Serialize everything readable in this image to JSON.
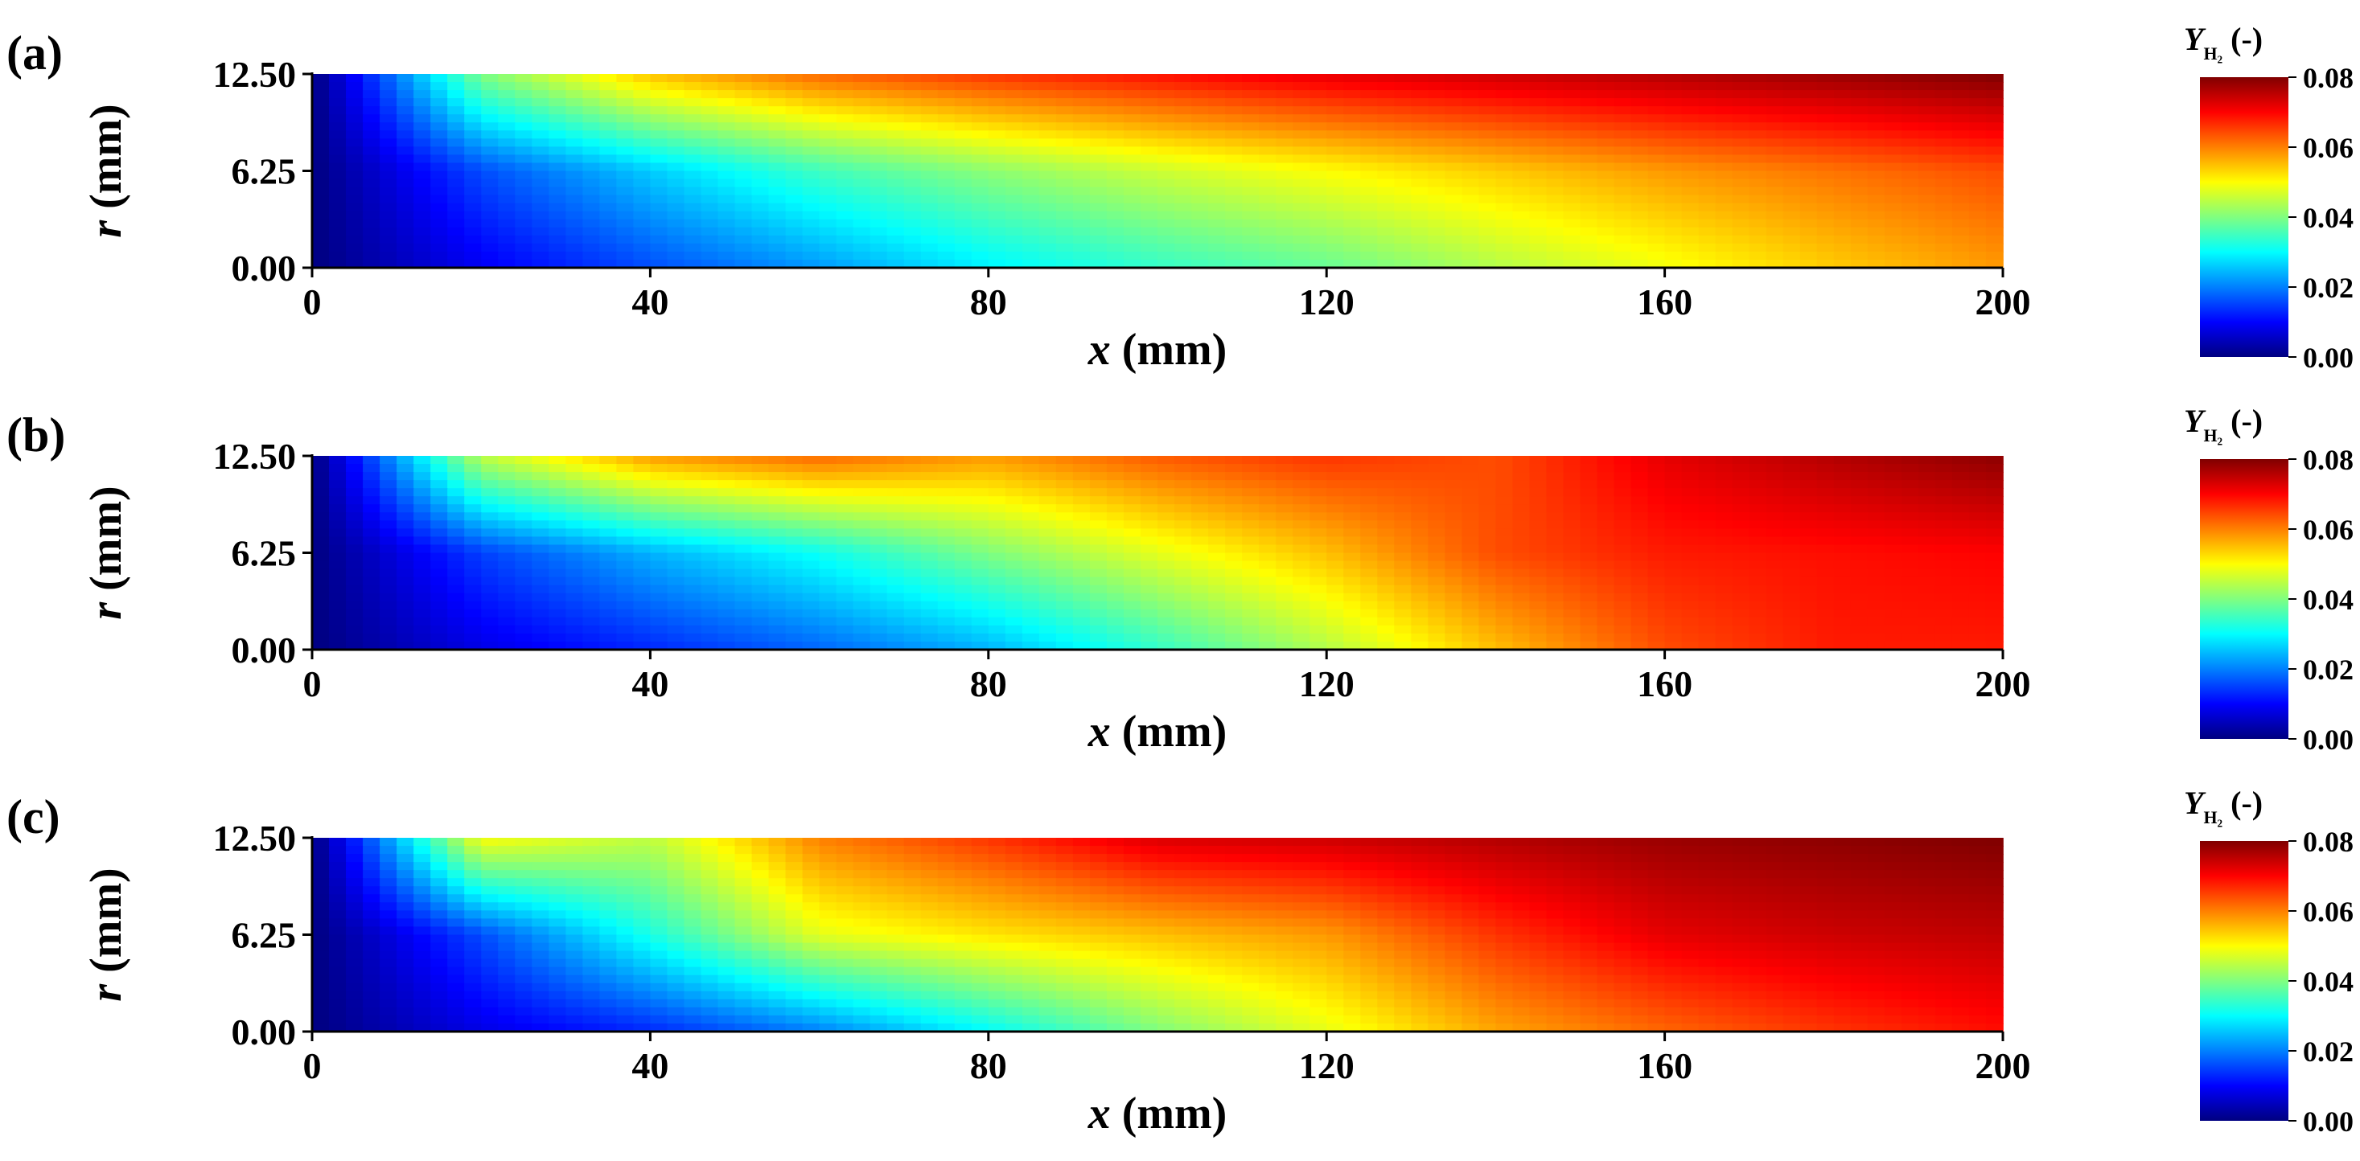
{
  "chart_data": [
    {
      "type": "heatmap",
      "panel_label": "(a)",
      "xlabel_var": "x",
      "xlabel_unit": " (mm)",
      "ylabel_var": "r",
      "ylabel_unit": " (mm)",
      "xlim": [
        0,
        200
      ],
      "ylim": [
        0,
        12.5
      ],
      "x_ticks": [
        0,
        40,
        80,
        120,
        160,
        200
      ],
      "x_tick_labels": [
        "0",
        "40",
        "80",
        "120",
        "160",
        "200"
      ],
      "y_ticks": [
        0,
        6.25,
        12.5
      ],
      "y_tick_labels": [
        "0.00",
        "6.25",
        "12.50"
      ],
      "colormap": "jet",
      "field": {
        "x": [
          0,
          20,
          40,
          60,
          80,
          100,
          120,
          140,
          160,
          180,
          200
        ],
        "r": [
          0,
          6.25,
          12.5
        ],
        "values": [
          [
            0.0,
            0.009,
            0.016,
            0.022,
            0.029,
            0.034,
            0.038,
            0.044,
            0.049,
            0.054,
            0.058
          ],
          [
            0.0,
            0.016,
            0.026,
            0.035,
            0.041,
            0.046,
            0.05,
            0.054,
            0.058,
            0.061,
            0.064
          ],
          [
            0.0,
            0.04,
            0.055,
            0.062,
            0.066,
            0.069,
            0.072,
            0.074,
            0.076,
            0.078,
            0.08
          ]
        ]
      },
      "colorbar": {
        "title_var": "Y",
        "title_sub": "H₂",
        "title_unit": " (-)",
        "range": [
          0,
          0.08
        ],
        "ticks": [
          0,
          0.02,
          0.04,
          0.06,
          0.08
        ],
        "tick_labels": [
          "0.00",
          "0.02",
          "0.04",
          "0.06",
          "0.08"
        ]
      }
    },
    {
      "type": "heatmap",
      "panel_label": "(b)",
      "xlabel_var": "x",
      "xlabel_unit": " (mm)",
      "ylabel_var": "r",
      "ylabel_unit": " (mm)",
      "xlim": [
        0,
        200
      ],
      "ylim": [
        0,
        12.5
      ],
      "x_ticks": [
        0,
        40,
        80,
        120,
        160,
        200
      ],
      "x_tick_labels": [
        "0",
        "40",
        "80",
        "120",
        "160",
        "200"
      ],
      "y_ticks": [
        0,
        6.25,
        12.5
      ],
      "y_tick_labels": [
        "0.00",
        "6.25",
        "12.50"
      ],
      "colormap": "jet",
      "field": {
        "x": [
          0,
          20,
          40,
          60,
          80,
          100,
          120,
          140,
          160,
          180,
          200
        ],
        "r": [
          0,
          6.25,
          12.5
        ],
        "values": [
          [
            0.0,
            0.008,
            0.013,
            0.018,
            0.024,
            0.034,
            0.044,
            0.055,
            0.064,
            0.068,
            0.068
          ],
          [
            0.0,
            0.015,
            0.024,
            0.031,
            0.04,
            0.048,
            0.055,
            0.064,
            0.068,
            0.069,
            0.07
          ],
          [
            0.0,
            0.045,
            0.058,
            0.062,
            0.058,
            0.063,
            0.066,
            0.064,
            0.072,
            0.076,
            0.079
          ]
        ]
      },
      "colorbar": {
        "title_var": "Y",
        "title_sub": "H₂",
        "title_unit": " (-)",
        "range": [
          0,
          0.08
        ],
        "ticks": [
          0,
          0.02,
          0.04,
          0.06,
          0.08
        ],
        "tick_labels": [
          "0.00",
          "0.02",
          "0.04",
          "0.06",
          "0.08"
        ]
      }
    },
    {
      "type": "heatmap",
      "panel_label": "(c)",
      "xlabel_var": "x",
      "xlabel_unit": " (mm)",
      "ylabel_var": "r",
      "ylabel_unit": " (mm)",
      "xlim": [
        0,
        200
      ],
      "ylim": [
        0,
        12.5
      ],
      "x_ticks": [
        0,
        40,
        80,
        120,
        160,
        200
      ],
      "x_tick_labels": [
        "0",
        "40",
        "80",
        "120",
        "160",
        "200"
      ],
      "y_ticks": [
        0,
        6.25,
        12.5
      ],
      "y_tick_labels": [
        "0.00",
        "6.25",
        "12.50"
      ],
      "colormap": "jet",
      "field": {
        "x": [
          0,
          20,
          40,
          60,
          80,
          100,
          120,
          140,
          160,
          180,
          200
        ],
        "r": [
          0,
          6.25,
          12.5
        ],
        "values": [
          [
            0.0,
            0.008,
            0.013,
            0.02,
            0.03,
            0.04,
            0.048,
            0.057,
            0.062,
            0.066,
            0.069
          ],
          [
            0.0,
            0.016,
            0.032,
            0.048,
            0.052,
            0.055,
            0.058,
            0.066,
            0.072,
            0.074,
            0.075
          ],
          [
            0.0,
            0.05,
            0.045,
            0.06,
            0.066,
            0.073,
            0.074,
            0.076,
            0.078,
            0.079,
            0.08
          ]
        ]
      },
      "colorbar": {
        "title_var": "Y",
        "title_sub": "H₂",
        "title_unit": " (-)",
        "range": [
          0,
          0.08
        ],
        "ticks": [
          0,
          0.02,
          0.04,
          0.06,
          0.08
        ],
        "tick_labels": [
          "0.00",
          "0.02",
          "0.04",
          "0.06",
          "0.08"
        ]
      }
    }
  ]
}
